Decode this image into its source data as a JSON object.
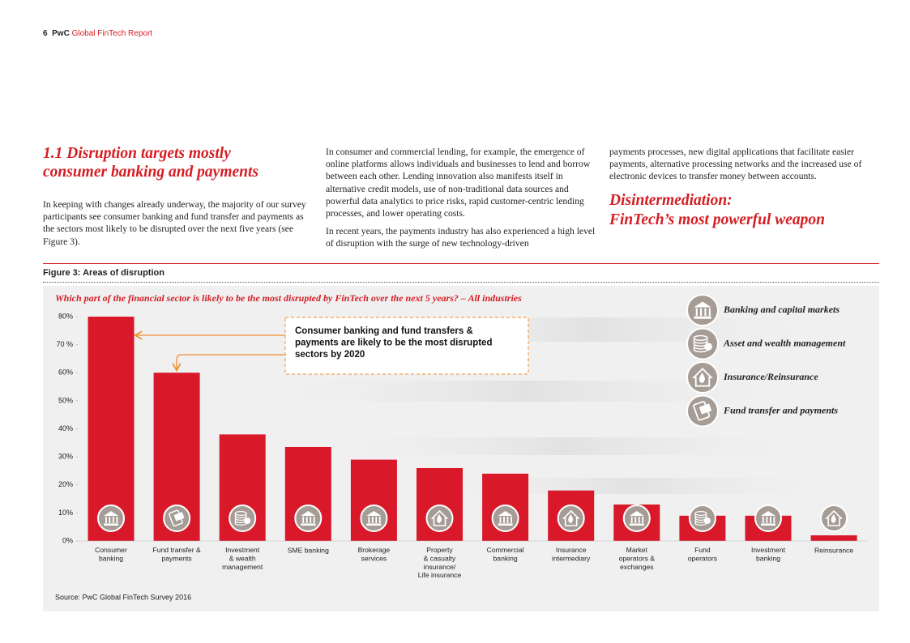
{
  "header": {
    "page": "6",
    "brand": "PwC",
    "title": "Global FinTech Report"
  },
  "section": {
    "heading": "1.1 Disruption targets mostly\nconsumer banking and payments",
    "paragraphs": [
      "In keeping with changes already underway, the majority of our survey participants see consumer banking and fund transfer and payments as the sectors most likely to be disrupted over the next five years (see Figure 3).",
      "In consumer and commercial lending, for example, the emergence of online platforms allows individuals and businesses to lend and borrow between each other. Lending innovation also manifests itself in  alternative credit models, use of non-traditional data sources and powerful data analytics to price risks, rapid customer-centric lending processes, and lower operating costs.",
      "In recent years, the payments industry has also experienced a high level of disruption with the surge of new technology-driven",
      "payments processes, new digital applications that facilitate easier payments, alternative processing networks and the increased use of electronic devices to transfer money between accounts."
    ],
    "subheading": "Disintermediation:\nFinTech’s most powerful weapon"
  },
  "figure": {
    "label": "Figure 3: Areas of disruption",
    "source": "Source: PwC Global FinTech Survey 2016"
  },
  "chart_data": {
    "type": "bar",
    "title": "Which part of the financial sector is likely to be the most disrupted by FinTech over the next 5 years? – All industries",
    "categories": [
      "Consumer\nbanking",
      "Fund transfer &\npayments",
      "Investment\n& wealth\nmanagement",
      "SME banking",
      "Brokerage\nservices",
      "Property\n& casualty\ninsurance/\nLife insurance",
      "Commercial\nbanking",
      "Insurance\nintermediary",
      "Market\noperators &\nexchanges",
      "Fund\noperators",
      "Investment\nbanking",
      "Reinsurance"
    ],
    "values": [
      80,
      60,
      38,
      33.5,
      29,
      26,
      24,
      18,
      13,
      9,
      9,
      2
    ],
    "color": "#d9182a",
    "ylim": [
      0,
      80
    ],
    "yticks": [
      {
        "value": 0,
        "label": "0%"
      },
      {
        "value": 10,
        "label": "10%"
      },
      {
        "value": 20,
        "label": "20%"
      },
      {
        "value": 30,
        "label": "30%"
      },
      {
        "value": 40,
        "label": "40%"
      },
      {
        "value": 50,
        "label": "50%"
      },
      {
        "value": 60,
        "label": "60%"
      },
      {
        "value": 70,
        "label": "70 %"
      },
      {
        "value": 80,
        "label": "80%"
      }
    ],
    "annotation": "Consumer banking and fund transfers &\npayments are likely to be the most disrupted\nsectors by 2020",
    "legend": [
      "Banking and capital markets",
      "Asset and wealth management",
      "Insurance/Reinsurance",
      "Fund transfer and payments"
    ]
  }
}
